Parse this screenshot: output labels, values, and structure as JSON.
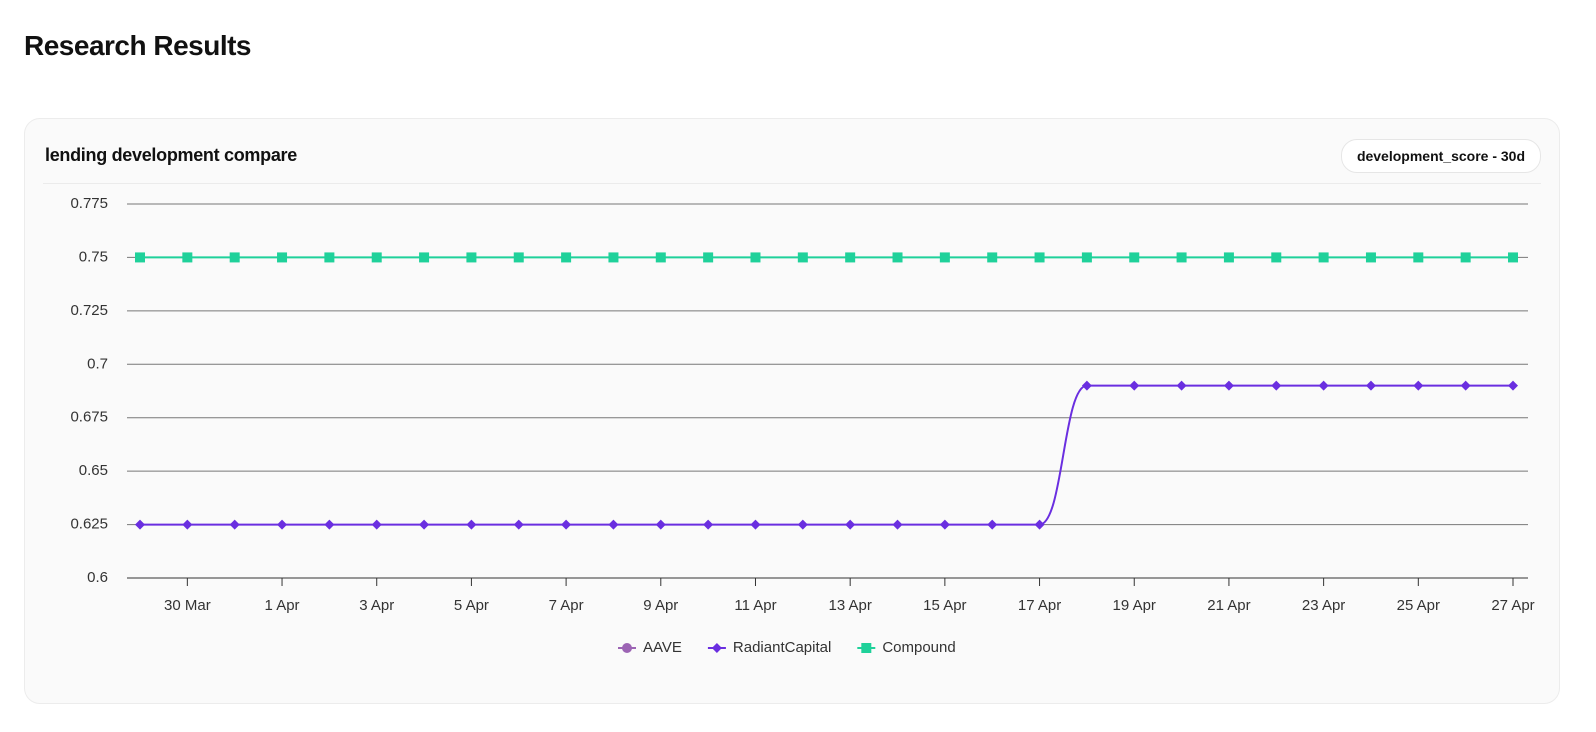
{
  "header": {
    "title": "Research Results"
  },
  "card": {
    "badge": "development_score - 30d"
  },
  "chart_data": {
    "type": "line",
    "title": "lending development compare",
    "categories": [
      null,
      "30 Mar",
      null,
      "1 Apr",
      null,
      "3 Apr",
      null,
      "5 Apr",
      null,
      "7 Apr",
      null,
      "9 Apr",
      null,
      "11 Apr",
      null,
      "13 Apr",
      null,
      "15 Apr",
      null,
      "17 Apr",
      null,
      "19 Apr",
      null,
      "21 Apr",
      null,
      "23 Apr",
      null,
      "25 Apr",
      null,
      "27 Apr"
    ],
    "series": [
      {
        "name": "AAVE",
        "color": "#9c64b4",
        "marker": "circle",
        "values": [
          null,
          null,
          null,
          null,
          null,
          null,
          null,
          null,
          null,
          null,
          null,
          null,
          null,
          null,
          null,
          null,
          null,
          null,
          null,
          null,
          null,
          null,
          null,
          null,
          null,
          null,
          null,
          null,
          null,
          null
        ]
      },
      {
        "name": "RadiantCapital",
        "color": "#6a2ee0",
        "marker": "diamond",
        "values": [
          0.625,
          0.625,
          0.625,
          0.625,
          0.625,
          0.625,
          0.625,
          0.625,
          0.625,
          0.625,
          0.625,
          0.625,
          0.625,
          0.625,
          0.625,
          0.625,
          0.625,
          0.625,
          0.625,
          0.625,
          0.69,
          0.69,
          0.69,
          0.69,
          0.69,
          0.69,
          0.69,
          0.69,
          0.69,
          0.69
        ]
      },
      {
        "name": "Compound",
        "color": "#1fd19a",
        "marker": "square",
        "values": [
          0.75,
          0.75,
          0.75,
          0.75,
          0.75,
          0.75,
          0.75,
          0.75,
          0.75,
          0.75,
          0.75,
          0.75,
          0.75,
          0.75,
          0.75,
          0.75,
          0.75,
          0.75,
          0.75,
          0.75,
          0.75,
          0.75,
          0.75,
          0.75,
          0.75,
          0.75,
          0.75,
          0.75,
          0.75,
          0.75
        ]
      }
    ],
    "ylim": [
      0.6,
      0.775
    ],
    "yticks": [
      0.6,
      0.625,
      0.65,
      0.675,
      0.7,
      0.725,
      0.75,
      0.775
    ],
    "grid": true,
    "legend": "bottom"
  }
}
